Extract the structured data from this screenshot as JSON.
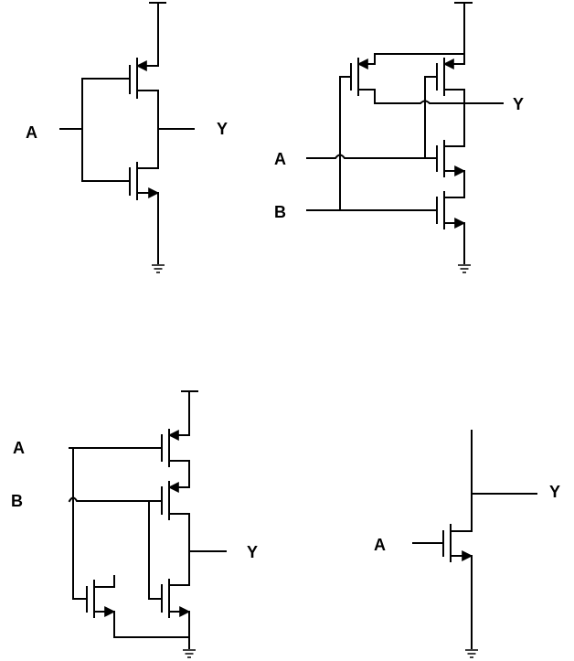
{
  "circuits": [
    {
      "id": "inverter",
      "labels": {
        "input_a": "A",
        "output_y": "Y"
      }
    },
    {
      "id": "two-input-gate-top-right",
      "labels": {
        "input_a": "A",
        "input_b": "B",
        "output_y": "Y"
      }
    },
    {
      "id": "two-input-gate-bottom-left",
      "labels": {
        "input_a": "A",
        "input_b": "B",
        "output_y": "Y"
      }
    },
    {
      "id": "single-transistor-bottom-right",
      "labels": {
        "input_a": "A",
        "output_y": "Y"
      }
    }
  ]
}
